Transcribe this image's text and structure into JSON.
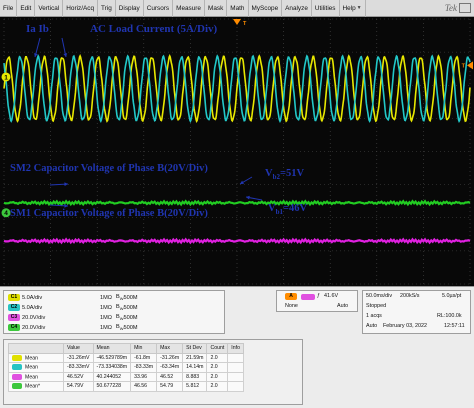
{
  "menu": {
    "items": [
      "File",
      "Edit",
      "Vertical",
      "Horiz/Acq",
      "Trig",
      "Display",
      "Cursors",
      "Measure",
      "Mask",
      "Math",
      "MyScope",
      "Analyze",
      "Utilities",
      "Help"
    ],
    "logo": "Tek"
  },
  "annotations": {
    "current_legend": "Ia  Ib",
    "current_title": "AC Load Current  (5A/Div)",
    "sm2_label": "SM2 Capacitor Voltage of Phase B(20V/Div)",
    "sm1_label": "SM1 Capacitor Voltage of Phase B(20V/Div)",
    "vb2_main": "V",
    "vb2_sub": "b2",
    "vb2_value": "=51V",
    "vb1_main": "V",
    "vb1_sub": "b1",
    "vb1_value": "=46V"
  },
  "markers": {
    "left_top": "1",
    "left_bottom": "4",
    "right": "T",
    "top": "T"
  },
  "channels": [
    {
      "id": "C1",
      "scale": "5.0A/div",
      "imp": "1MΩ",
      "bw": "500M",
      "color": "#e0e000"
    },
    {
      "id": "C2",
      "scale": "5.0A/div",
      "imp": "1MΩ",
      "bw": "500M",
      "color": "#27c4c4"
    },
    {
      "id": "C3",
      "scale": "20.0V/div",
      "imp": "1MΩ",
      "bw": "500M",
      "color": "#e050e0"
    },
    {
      "id": "C4",
      "scale": "20.0V/div",
      "imp": "1MΩ",
      "bw": "500M",
      "color": "#3cc83c"
    }
  ],
  "trigger": {
    "channel": "A",
    "symbol": "ƒ",
    "level": "41.6V",
    "coupling": "None",
    "mode": "Auto"
  },
  "acquisition": {
    "timebase": "50.0ms/div",
    "sample_rate": "200kS/s",
    "resolution": "5.0µs/pt",
    "state": "Stopped",
    "acqs": "1 acqs",
    "record_length": "RL:100.0k",
    "trigger_mode": "Auto",
    "date": "February 03, 2022",
    "time": "12:57:11"
  },
  "measurements": {
    "headers": [
      "",
      "Value",
      "Mean",
      "Min",
      "Max",
      "St Dev",
      "Count",
      "Info"
    ],
    "rows": [
      {
        "ch": "C1",
        "color": "#e0e000",
        "label": "Mean",
        "value": "-31.26mV",
        "mean": "-46.529789m",
        "min": "-61.8m",
        "max": "-31.26m",
        "stdev": "21.59m",
        "count": "2.0",
        "info": ""
      },
      {
        "ch": "C2",
        "color": "#27c4c4",
        "label": "Mean",
        "value": "-83.33mV",
        "mean": "-73.334038m",
        "min": "-83.33m",
        "max": "-63.34m",
        "stdev": "14.14m",
        "count": "2.0",
        "info": ""
      },
      {
        "ch": "C3",
        "color": "#e050e0",
        "label": "Mean",
        "value": "46.52V",
        "mean": "40.244052",
        "min": "33.96",
        "max": "46.52",
        "stdev": "8.883",
        "count": "2.0",
        "info": ""
      },
      {
        "ch": "C4",
        "color": "#3cc83c",
        "label": "Mean*",
        "value": "54.79V",
        "mean": "50.677228",
        "min": "46.56",
        "max": "54.79",
        "stdev": "5.812",
        "count": "2.0",
        "info": ""
      }
    ]
  },
  "waveforms": {
    "current_cycles": 26,
    "current_amplitude_div": 1.9,
    "sm2_level_div": -1.55,
    "sm1_level_div": -2.7,
    "colors": {
      "ia": "#e8e800",
      "ib": "#22c8c8",
      "sm2": "#22cc22",
      "sm1": "#e020e0",
      "grid": "#4a4a4a"
    }
  }
}
